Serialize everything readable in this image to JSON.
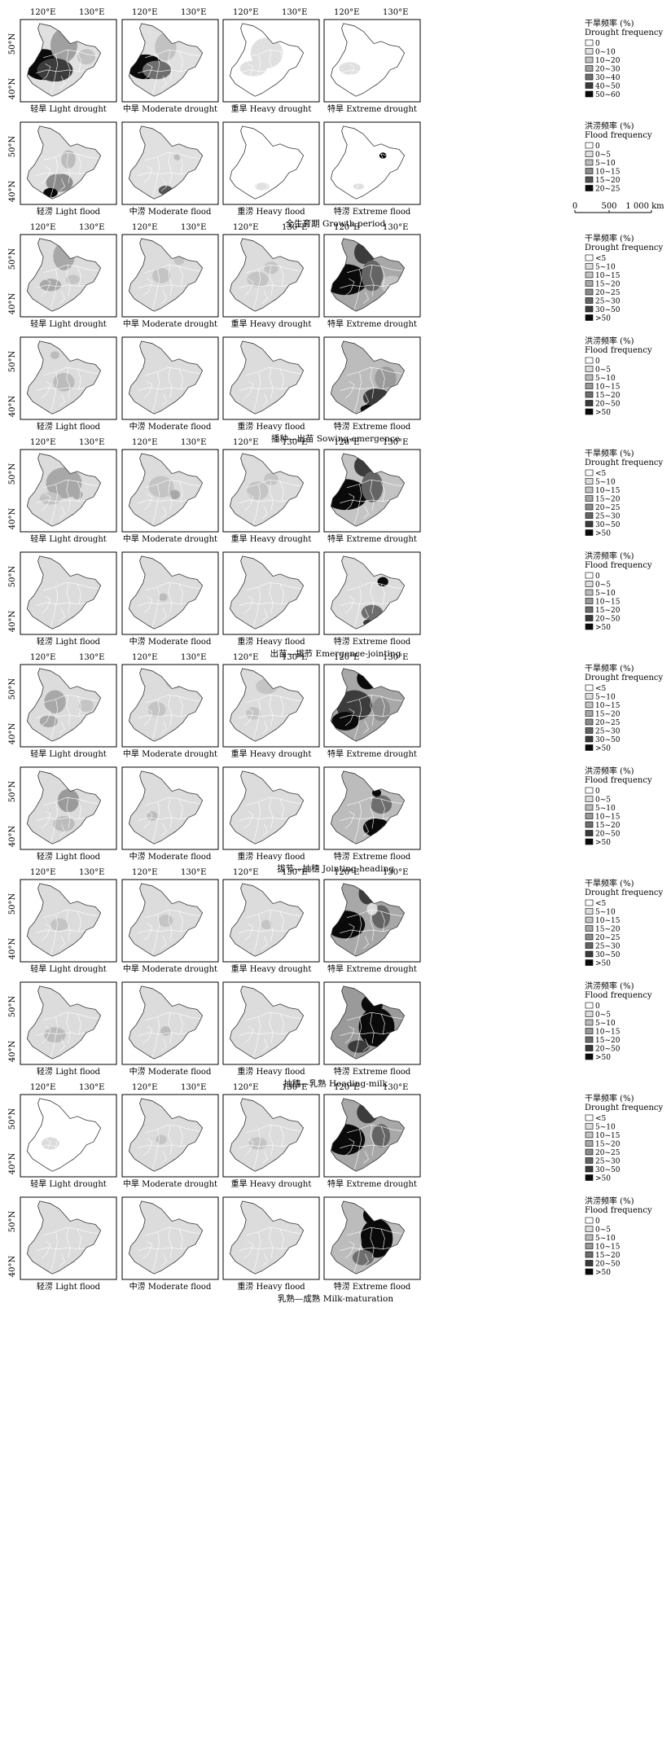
{
  "axis": {
    "lon_labels": [
      "120°E",
      "130°E"
    ],
    "lat_labels": [
      "50°N",
      "40°N"
    ]
  },
  "legends": {
    "drought_gp": {
      "title_cn": "干旱频率 (%)",
      "title_en": "Drought frequency",
      "classes": [
        "0",
        "0~10",
        "10~20",
        "20~30",
        "30~40",
        "40~50",
        "50~60"
      ],
      "fills": [
        "#ffffff",
        "#e0e0e0",
        "#c2c2c2",
        "#a0a0a0",
        "#6e6e6e",
        "#3c3c3c",
        "#0a0a0a"
      ]
    },
    "flood_gp": {
      "title_cn": "洪涝频率 (%)",
      "title_en": "Flood frequency",
      "classes": [
        "0",
        "0~5",
        "5~10",
        "10~15",
        "15~20",
        "20~25"
      ],
      "fills": [
        "#ffffff",
        "#e0e0e0",
        "#bcbcbc",
        "#8c8c8c",
        "#555555",
        "#0a0a0a"
      ]
    },
    "drought_stage": {
      "title_cn": "干旱频率 (%)",
      "title_en": "Drought frequency",
      "classes": [
        "<5",
        "5~10",
        "10~15",
        "15~20",
        "20~25",
        "25~30",
        "30~50",
        ">50"
      ],
      "fills": [
        "#ffffff",
        "#dcdcdc",
        "#c4c4c4",
        "#a8a8a8",
        "#8c8c8c",
        "#646464",
        "#3c3c3c",
        "#0a0a0a"
      ]
    },
    "flood_stage": {
      "title_cn": "洪涝频率 (%)",
      "title_en": "Flood frequency",
      "classes": [
        "0",
        "0~5",
        "5~10",
        "10~15",
        "15~20",
        "20~50",
        ">50"
      ],
      "fills": [
        "#ffffff",
        "#dcdcdc",
        "#bcbcbc",
        "#9a9a9a",
        "#6e6e6e",
        "#3a3a3a",
        "#0a0a0a"
      ]
    }
  },
  "scale_bar": {
    "labels": [
      "0",
      "500",
      "1 000 km"
    ]
  },
  "panel_labels": {
    "drought": [
      "轻旱 Light drought",
      "中旱 Moderate drought",
      "重旱 Heavy drought",
      "特旱 Extreme drought"
    ],
    "flood": [
      "轻涝 Light flood",
      "中涝 Moderate flood",
      "重涝 Heavy flood",
      "特涝 Extreme flood"
    ]
  },
  "periods": [
    {
      "caption": "全生育期 Growth period",
      "drought_legend": "drought_gp",
      "flood_legend": "flood_gp",
      "drought_shades": [
        {
          "base": 1,
          "blobs": [
            [
              0.22,
              0.55,
              0.22,
              0.2,
              6
            ],
            [
              0.45,
              0.3,
              0.15,
              0.22,
              3
            ],
            [
              0.35,
              0.62,
              0.2,
              0.15,
              5
            ],
            [
              0.7,
              0.45,
              0.1,
              0.1,
              2
            ]
          ]
        },
        {
          "base": 1,
          "blobs": [
            [
              0.22,
              0.58,
              0.2,
              0.16,
              6
            ],
            [
              0.45,
              0.32,
              0.12,
              0.18,
              2
            ],
            [
              0.35,
              0.62,
              0.16,
              0.12,
              4
            ]
          ]
        },
        {
          "base": 0,
          "blobs": [
            [
              0.45,
              0.4,
              0.18,
              0.2,
              1
            ],
            [
              0.3,
              0.6,
              0.15,
              0.1,
              1
            ]
          ]
        },
        {
          "base": 0,
          "blobs": [
            [
              0.25,
              0.6,
              0.12,
              0.08,
              1
            ]
          ]
        }
      ],
      "flood_shades": [
        {
          "base": 1,
          "blobs": [
            [
              0.4,
              0.75,
              0.15,
              0.12,
              3
            ],
            [
              0.3,
              0.88,
              0.08,
              0.06,
              5
            ],
            [
              0.5,
              0.45,
              0.08,
              0.12,
              2
            ]
          ]
        },
        {
          "base": 1,
          "blobs": [
            [
              0.45,
              0.85,
              0.08,
              0.06,
              4
            ],
            [
              0.58,
              0.42,
              0.04,
              0.04,
              2
            ]
          ]
        },
        {
          "base": 0,
          "blobs": [
            [
              0.4,
              0.8,
              0.08,
              0.05,
              1
            ]
          ]
        },
        {
          "base": 0,
          "blobs": [
            [
              0.62,
              0.4,
              0.04,
              0.04,
              5
            ],
            [
              0.35,
              0.8,
              0.06,
              0.04,
              1
            ]
          ]
        }
      ]
    },
    {
      "caption": "播种—出苗 Sowing-emergence",
      "drought_legend": "drought_stage",
      "flood_legend": "flood_stage",
      "drought_shades": [
        {
          "base": 1,
          "blobs": [
            [
              0.45,
              0.25,
              0.12,
              0.18,
              3
            ],
            [
              0.3,
              0.62,
              0.12,
              0.08,
              3
            ],
            [
              0.55,
              0.55,
              0.08,
              0.06,
              2
            ]
          ]
        },
        {
          "base": 1,
          "blobs": [
            [
              0.4,
              0.5,
              0.1,
              0.1,
              2
            ],
            [
              0.6,
              0.3,
              0.06,
              0.06,
              2
            ]
          ]
        },
        {
          "base": 1,
          "blobs": [
            [
              0.35,
              0.55,
              0.12,
              0.1,
              2
            ],
            [
              0.5,
              0.4,
              0.08,
              0.08,
              2
            ]
          ]
        },
        {
          "base": 3,
          "blobs": [
            [
              0.2,
              0.55,
              0.25,
              0.2,
              7
            ],
            [
              0.42,
              0.2,
              0.12,
              0.15,
              6
            ],
            [
              0.5,
              0.5,
              0.12,
              0.2,
              5
            ],
            [
              0.72,
              0.62,
              0.12,
              0.12,
              2
            ]
          ]
        }
      ],
      "flood_shades": [
        {
          "base": 1,
          "blobs": [
            [
              0.45,
              0.55,
              0.12,
              0.12,
              2
            ],
            [
              0.35,
              0.2,
              0.05,
              0.05,
              2
            ]
          ]
        },
        {
          "base": 1,
          "blobs": [
            [
              0.45,
              0.55,
              0.06,
              0.06,
              1
            ]
          ]
        },
        {
          "base": 1,
          "blobs": []
        },
        {
          "base": 2,
          "blobs": [
            [
              0.55,
              0.75,
              0.15,
              0.12,
              5
            ],
            [
              0.45,
              0.9,
              0.08,
              0.06,
              6
            ],
            [
              0.65,
              0.5,
              0.12,
              0.15,
              3
            ]
          ]
        }
      ]
    },
    {
      "caption": "出苗—拔节 Emergence-jointing",
      "drought_legend": "drought_stage",
      "flood_legend": "flood_stage",
      "drought_shades": [
        {
          "base": 1,
          "blobs": [
            [
              0.45,
              0.4,
              0.2,
              0.2,
              3
            ],
            [
              0.3,
              0.6,
              0.12,
              0.08,
              2
            ],
            [
              0.6,
              0.55,
              0.06,
              0.06,
              3
            ]
          ]
        },
        {
          "base": 1,
          "blobs": [
            [
              0.4,
              0.45,
              0.14,
              0.14,
              2
            ],
            [
              0.55,
              0.55,
              0.06,
              0.06,
              3
            ]
          ]
        },
        {
          "base": 1,
          "blobs": [
            [
              0.35,
              0.5,
              0.12,
              0.12,
              2
            ],
            [
              0.5,
              0.35,
              0.08,
              0.08,
              2
            ]
          ]
        },
        {
          "base": 2,
          "blobs": [
            [
              0.2,
              0.55,
              0.25,
              0.2,
              7
            ],
            [
              0.42,
              0.18,
              0.12,
              0.14,
              6
            ],
            [
              0.5,
              0.45,
              0.12,
              0.2,
              5
            ]
          ]
        }
      ],
      "flood_shades": [
        {
          "base": 1,
          "blobs": []
        },
        {
          "base": 1,
          "blobs": [
            [
              0.42,
              0.55,
              0.05,
              0.05,
              2
            ]
          ]
        },
        {
          "base": 1,
          "blobs": [
            [
              0.4,
              0.6,
              0.05,
              0.05,
              1
            ]
          ]
        },
        {
          "base": 1,
          "blobs": [
            [
              0.62,
              0.35,
              0.06,
              0.06,
              6
            ],
            [
              0.5,
              0.75,
              0.12,
              0.1,
              4
            ],
            [
              0.45,
              0.88,
              0.05,
              0.04,
              5
            ]
          ]
        }
      ]
    },
    {
      "caption": "拔节—抽穗 Jointing-heading",
      "drought_legend": "drought_stage",
      "flood_legend": "flood_stage",
      "drought_shades": [
        {
          "base": 1,
          "blobs": [
            [
              0.35,
              0.45,
              0.12,
              0.15,
              3
            ],
            [
              0.28,
              0.7,
              0.1,
              0.08,
              3
            ],
            [
              0.7,
              0.5,
              0.08,
              0.08,
              2
            ]
          ]
        },
        {
          "base": 1,
          "blobs": [
            [
              0.35,
              0.55,
              0.1,
              0.1,
              2
            ],
            [
              0.55,
              0.2,
              0.1,
              0.08,
              2
            ]
          ]
        },
        {
          "base": 1,
          "blobs": [
            [
              0.45,
              0.25,
              0.12,
              0.1,
              2
            ],
            [
              0.3,
              0.6,
              0.08,
              0.08,
              2
            ]
          ]
        },
        {
          "base": 3,
          "blobs": [
            [
              0.3,
              0.5,
              0.2,
              0.2,
              6
            ],
            [
              0.45,
              0.15,
              0.12,
              0.14,
              7
            ],
            [
              0.2,
              0.7,
              0.15,
              0.12,
              7
            ],
            [
              0.6,
              0.55,
              0.1,
              0.15,
              4
            ]
          ]
        }
      ],
      "flood_shades": [
        {
          "base": 1,
          "blobs": [
            [
              0.5,
              0.4,
              0.12,
              0.15,
              3
            ],
            [
              0.45,
              0.7,
              0.12,
              0.1,
              2
            ]
          ]
        },
        {
          "base": 1,
          "blobs": [
            [
              0.3,
              0.6,
              0.06,
              0.06,
              2
            ]
          ]
        },
        {
          "base": 1,
          "blobs": []
        },
        {
          "base": 2,
          "blobs": [
            [
              0.55,
              0.75,
              0.15,
              0.12,
              6
            ],
            [
              0.6,
              0.45,
              0.12,
              0.12,
              4
            ],
            [
              0.55,
              0.3,
              0.05,
              0.05,
              7
            ]
          ]
        }
      ]
    },
    {
      "caption": "抽穗—乳熟 Heading-milk",
      "drought_legend": "drought_stage",
      "flood_legend": "flood_stage",
      "drought_shades": [
        {
          "base": 1,
          "blobs": [
            [
              0.4,
              0.55,
              0.1,
              0.08,
              2
            ]
          ]
        },
        {
          "base": 1,
          "blobs": [
            [
              0.45,
              0.5,
              0.08,
              0.08,
              2
            ]
          ]
        },
        {
          "base": 1,
          "blobs": [
            [
              0.45,
              0.55,
              0.06,
              0.06,
              2
            ]
          ]
        },
        {
          "base": 3,
          "blobs": [
            [
              0.2,
              0.55,
              0.22,
              0.18,
              7
            ],
            [
              0.45,
              0.15,
              0.1,
              0.14,
              6
            ],
            [
              0.6,
              0.45,
              0.1,
              0.15,
              5
            ],
            [
              0.5,
              0.35,
              0.06,
              0.08,
              1
            ]
          ]
        }
      ],
      "flood_shades": [
        {
          "base": 1,
          "blobs": [
            [
              0.35,
              0.65,
              0.12,
              0.1,
              2
            ]
          ]
        },
        {
          "base": 1,
          "blobs": [
            [
              0.45,
              0.6,
              0.06,
              0.06,
              2
            ]
          ]
        },
        {
          "base": 1,
          "blobs": []
        },
        {
          "base": 3,
          "blobs": [
            [
              0.55,
              0.55,
              0.2,
              0.25,
              6
            ],
            [
              0.5,
              0.25,
              0.12,
              0.12,
              7
            ],
            [
              0.35,
              0.8,
              0.12,
              0.08,
              5
            ]
          ]
        }
      ]
    },
    {
      "caption": "乳熟—成熟 Milk-maturation",
      "drought_legend": "drought_stage",
      "flood_legend": "flood_stage",
      "drought_shades": [
        {
          "base": 0,
          "blobs": [
            [
              0.3,
              0.6,
              0.1,
              0.08,
              1
            ]
          ]
        },
        {
          "base": 1,
          "blobs": [
            [
              0.4,
              0.55,
              0.06,
              0.06,
              2
            ]
          ]
        },
        {
          "base": 1,
          "blobs": [
            [
              0.35,
              0.6,
              0.1,
              0.08,
              2
            ]
          ]
        },
        {
          "base": 3,
          "blobs": [
            [
              0.2,
              0.55,
              0.22,
              0.2,
              7
            ],
            [
              0.45,
              0.2,
              0.12,
              0.14,
              6
            ],
            [
              0.6,
              0.5,
              0.1,
              0.15,
              5
            ]
          ]
        }
      ],
      "flood_shades": [
        {
          "base": 1,
          "blobs": []
        },
        {
          "base": 1,
          "blobs": []
        },
        {
          "base": 1,
          "blobs": []
        },
        {
          "base": 2,
          "blobs": [
            [
              0.55,
              0.5,
              0.18,
              0.25,
              6
            ],
            [
              0.5,
              0.2,
              0.1,
              0.12,
              6
            ],
            [
              0.4,
              0.75,
              0.12,
              0.1,
              4
            ]
          ]
        }
      ]
    }
  ]
}
